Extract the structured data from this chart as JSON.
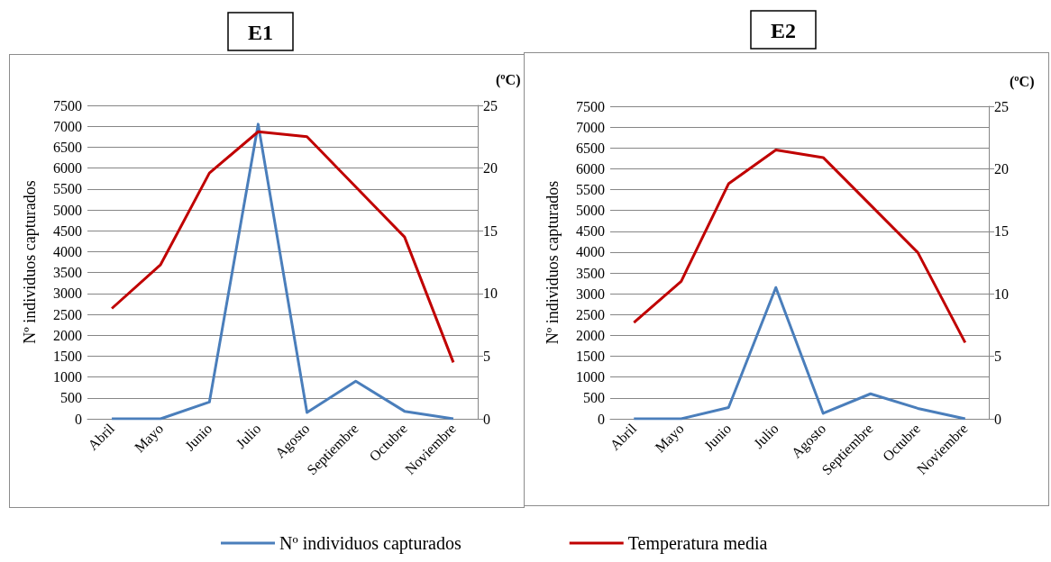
{
  "chart_data": [
    {
      "type": "line",
      "title": "E1",
      "ylabel": "Nº individuos capturados",
      "y2label": "(ºC)",
      "categories": [
        "Abril",
        "Mayo",
        "Junio",
        "Julio",
        "Agosto",
        "Septiembre",
        "Octubre",
        "Noviembre"
      ],
      "series": [
        {
          "name": "Nº individuos capturados",
          "color": "#4a7ebb",
          "values": [
            0,
            0,
            400,
            7050,
            150,
            900,
            180,
            0
          ]
        },
        {
          "name": "Temperatura media",
          "color": "#c00000",
          "axis": "y2",
          "values": [
            8.8,
            12.3,
            19.6,
            22.9,
            22.5,
            18.5,
            14.5,
            4.5
          ]
        }
      ],
      "ylim": [
        0,
        7500
      ],
      "yticks": [
        0,
        500,
        1000,
        1500,
        2000,
        2500,
        3000,
        3500,
        4000,
        4500,
        5000,
        5500,
        6000,
        6500,
        7000,
        7500
      ],
      "y2lim": [
        0,
        25
      ],
      "y2ticks": [
        0,
        5,
        10,
        15,
        20,
        25
      ],
      "grid": "y",
      "legend": "bottom",
      "marker": "none",
      "line_style": "solid"
    },
    {
      "type": "line",
      "title": "E2",
      "ylabel": "Nº individuos capturados",
      "y2label": "(ºC)",
      "categories": [
        "Abril",
        "Mayo",
        "Junio",
        "Julio",
        "Agosto",
        "Septiembre",
        "Octubre",
        "Noviembre"
      ],
      "series": [
        {
          "color": "#4a7ebb",
          "values": [
            0,
            0,
            270,
            3150,
            130,
            600,
            250,
            0
          ]
        },
        {
          "color": "#c00000",
          "axis": "y2",
          "values": [
            7.7,
            11.0,
            18.8,
            21.5,
            20.9,
            17.1,
            13.3,
            6.1
          ]
        }
      ],
      "ylim": [
        0,
        7500
      ],
      "yticks": [
        0,
        500,
        1000,
        1500,
        2000,
        2500,
        3000,
        3500,
        4000,
        4500,
        5000,
        5500,
        6000,
        6500,
        7000,
        7500
      ],
      "y2lim": [
        0,
        25
      ],
      "y2ticks": [
        0,
        5,
        10,
        15,
        20,
        25
      ],
      "grid": "y",
      "legend": false,
      "marker": "none",
      "line_style": "solid"
    }
  ]
}
